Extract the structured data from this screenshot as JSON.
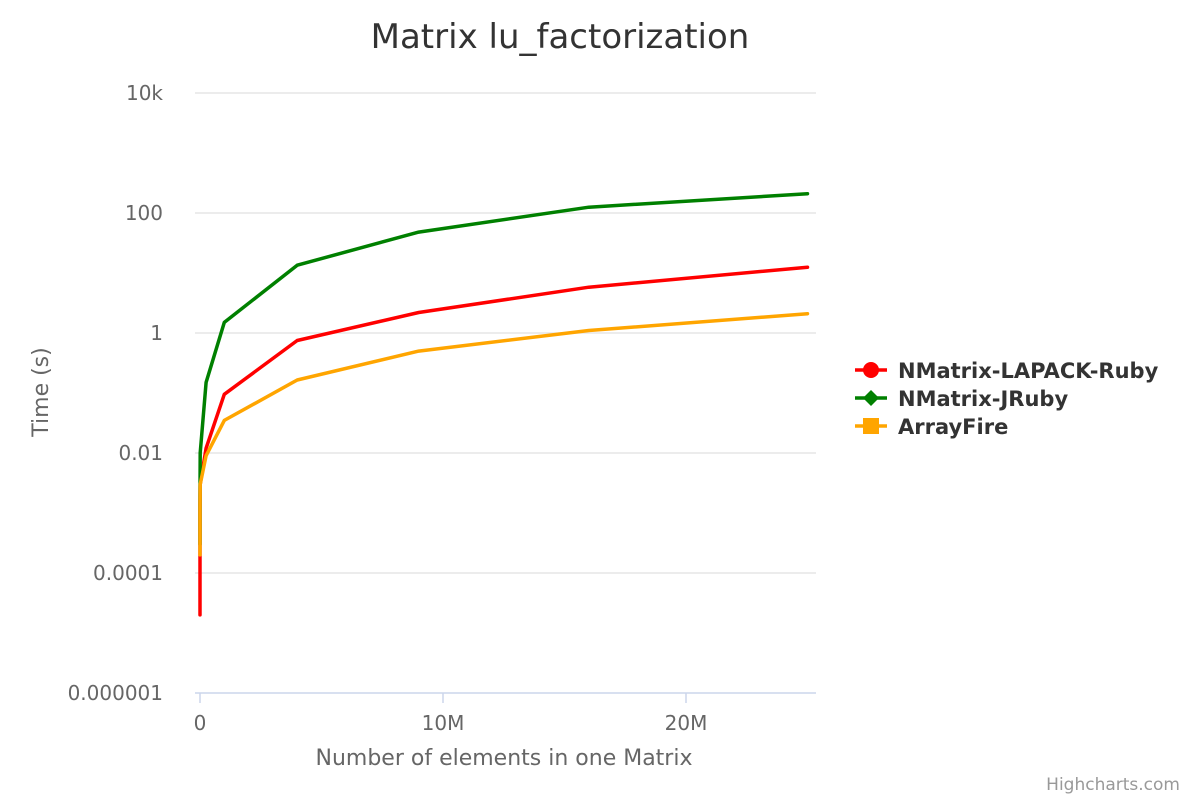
{
  "chart_data": {
    "type": "line",
    "title": "Matrix lu_factorization",
    "xlabel": "Number of elements in one Matrix",
    "ylabel": "Time (s)",
    "yscale": "log",
    "ylim": [
      1e-06,
      10000
    ],
    "xlim": [
      0,
      25000000
    ],
    "grid": true,
    "legend_position": "right",
    "y_ticks": [
      {
        "value": 10000,
        "label": "10k"
      },
      {
        "value": 100,
        "label": "100"
      },
      {
        "value": 1,
        "label": "1"
      },
      {
        "value": 0.01,
        "label": "0.01"
      },
      {
        "value": 0.0001,
        "label": "0.0001"
      },
      {
        "value": 1e-06,
        "label": "0.000001"
      }
    ],
    "x_ticks": [
      {
        "value": 0,
        "label": "0"
      },
      {
        "value": 10000000,
        "label": "10M"
      },
      {
        "value": 20000000,
        "label": "20M"
      }
    ],
    "series": [
      {
        "name": "NMatrix-LAPACK-Ruby",
        "color": "#ff0000",
        "marker": "circle",
        "x": [
          4,
          100,
          10000,
          250000,
          1000000,
          4000000,
          9000000,
          16000000,
          25000000
        ],
        "y": [
          2e-05,
          0.0012,
          0.003,
          0.012,
          0.095,
          0.75,
          2.2,
          5.8,
          12.5
        ]
      },
      {
        "name": "NMatrix-JRuby",
        "color": "#008000",
        "marker": "diamond",
        "x": [
          4,
          100,
          10000,
          250000,
          1000000,
          4000000,
          9000000,
          16000000,
          25000000
        ],
        "y": [
          0.0003,
          0.002,
          0.01,
          0.15,
          1.5,
          13.5,
          48,
          125,
          210
        ]
      },
      {
        "name": "ArrayFire",
        "color": "#ffa500",
        "marker": "square",
        "x": [
          4,
          100,
          10000,
          250000,
          1000000,
          4000000,
          9000000,
          16000000,
          25000000
        ],
        "y": [
          0.0002,
          0.0012,
          0.003,
          0.009,
          0.035,
          0.165,
          0.5,
          1.1,
          2.1
        ]
      }
    ]
  },
  "credits": "Highcharts.com"
}
